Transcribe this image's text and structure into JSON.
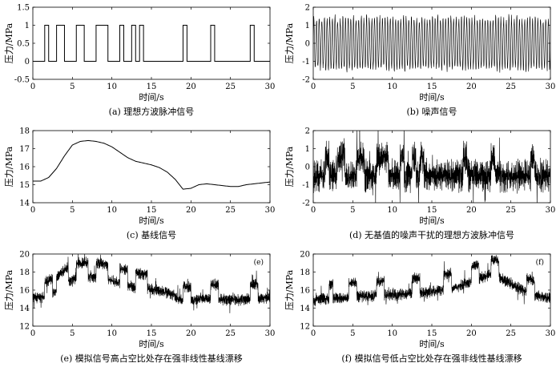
{
  "chart_data": [
    {
      "id": "a",
      "type": "line",
      "caption": "(a) 理想方波脉冲信号",
      "xlabel": "时间/s",
      "ylabel": "压力/MPa",
      "xlim": [
        0,
        30
      ],
      "ylim": [
        -0.5,
        1.5
      ],
      "xticks": [
        "0",
        "5",
        "10",
        "15",
        "20",
        "25",
        "30"
      ],
      "yticks": [
        "1.5",
        "1",
        "0.5",
        "0",
        "-0.5"
      ],
      "ytick_values": [
        1.5,
        1,
        0.5,
        0,
        -0.5
      ],
      "grid": false,
      "series": [
        {
          "kind": "square_pulse",
          "low": 0,
          "high": 1,
          "intervals": [
            [
              1.5,
              2.0
            ],
            [
              3.0,
              4.0
            ],
            [
              5.5,
              6.5
            ],
            [
              8.0,
              9.5
            ],
            [
              11.0,
              11.5
            ],
            [
              12.5,
              13.0
            ],
            [
              13.5,
              14.0
            ],
            [
              19.0,
              19.5
            ],
            [
              22.5,
              23.0
            ],
            [
              27.5,
              28.0
            ]
          ]
        }
      ]
    },
    {
      "id": "b",
      "type": "line",
      "caption": "(b) 噪声信号",
      "xlabel": "时间/s",
      "ylabel": "压力/MPa",
      "xlim": [
        0,
        30
      ],
      "ylim": [
        -2,
        2
      ],
      "xticks": [
        "0",
        "5",
        "10",
        "15",
        "20",
        "25",
        "30"
      ],
      "yticks": [
        "2",
        "1",
        "0",
        "-1",
        "-2"
      ],
      "ytick_values": [
        2,
        1,
        0,
        -1,
        -2
      ],
      "grid": false,
      "series": [
        {
          "kind": "oscillating_noise",
          "amplitude_range": [
            -1.6,
            1.6
          ],
          "periods": 90
        }
      ]
    },
    {
      "id": "c",
      "type": "line",
      "caption": "(c) 基线信号",
      "xlabel": "时间/s",
      "ylabel": "压力/MPa",
      "xlim": [
        0,
        30
      ],
      "ylim": [
        14,
        18
      ],
      "xticks": [
        "0",
        "5",
        "10",
        "15",
        "20",
        "25",
        "30"
      ],
      "yticks": [
        "18",
        "17",
        "16",
        "15",
        "14"
      ],
      "ytick_values": [
        18,
        17,
        16,
        15,
        14
      ],
      "grid": false,
      "series": [
        {
          "kind": "smooth_line",
          "x": [
            0,
            1,
            2,
            3,
            4,
            5,
            6,
            7,
            8,
            9,
            10,
            11,
            12,
            13,
            14,
            15,
            16,
            17,
            18,
            19,
            20,
            21,
            22,
            23,
            24,
            25,
            26,
            27,
            28,
            29,
            30
          ],
          "y": [
            15.2,
            15.2,
            15.4,
            15.9,
            16.6,
            17.2,
            17.4,
            17.45,
            17.4,
            17.3,
            17.1,
            16.8,
            16.5,
            16.3,
            16.2,
            16.1,
            15.95,
            15.7,
            15.3,
            14.75,
            14.8,
            15.0,
            15.05,
            15.0,
            14.95,
            14.9,
            14.9,
            15.0,
            15.05,
            15.1,
            15.15
          ]
        }
      ]
    },
    {
      "id": "d",
      "type": "line",
      "caption": "(d) 无基值的噪声干扰的理想方波脉冲信号",
      "xlabel": "时间/s",
      "ylabel": "压力/MPa",
      "xlim": [
        0,
        30
      ],
      "ylim": [
        -2,
        2
      ],
      "xticks": [
        "0",
        "5",
        "10",
        "15",
        "20",
        "25",
        "30"
      ],
      "yticks": [
        "2",
        "1",
        "0",
        "-1",
        "-2"
      ],
      "ytick_values": [
        2,
        1,
        0,
        -1,
        -2
      ],
      "grid": false,
      "series": [
        {
          "kind": "noisy_pulse",
          "base": "none",
          "pulse_of": "a",
          "noise_amplitude": 1.0
        }
      ]
    },
    {
      "id": "e",
      "type": "line",
      "caption": "(e) 模拟信号高占空比处存在强非线性基线漂移",
      "tag": "(e)",
      "xlabel": "时间/s",
      "ylabel": "压力/MPa",
      "xlim": [
        0,
        30
      ],
      "ylim": [
        12,
        20
      ],
      "xticks": [
        "0",
        "5",
        "10",
        "15",
        "20",
        "25",
        "30"
      ],
      "yticks": [
        "20",
        "18",
        "16",
        "14",
        "12"
      ],
      "ytick_values": [
        20,
        18,
        16,
        14,
        12
      ],
      "grid": false,
      "series": [
        {
          "kind": "noisy_pulse",
          "base": "c",
          "pulse_of": "e",
          "noise_amplitude": 0.7,
          "pulse_intervals": [
            [
              1.5,
              2.5
            ],
            [
              3.0,
              4.5
            ],
            [
              5.5,
              7.0
            ],
            [
              8.0,
              9.5
            ],
            [
              11.0,
              12.0
            ],
            [
              13.0,
              14.5
            ],
            [
              19.0,
              20.0
            ],
            [
              22.5,
              23.5
            ],
            [
              27.5,
              28.5
            ]
          ]
        }
      ]
    },
    {
      "id": "f",
      "type": "line",
      "caption": "(f) 模拟信号低占空比处存在强非线性基线漂移",
      "tag": "(f)",
      "xlabel": "时间/s",
      "ylabel": "压力/MPa",
      "xlim": [
        0,
        30
      ],
      "ylim": [
        12,
        20
      ],
      "xticks": [
        "0",
        "5",
        "10",
        "15",
        "20",
        "25",
        "30"
      ],
      "yticks": [
        "20",
        "18",
        "16",
        "14",
        "12"
      ],
      "ytick_values": [
        20,
        18,
        16,
        14,
        12
      ],
      "grid": false,
      "series": [
        {
          "kind": "noisy_pulse",
          "base": "f_base",
          "pulse_of": "f",
          "noise_amplitude": 0.7,
          "base_x": [
            0,
            3,
            6,
            9,
            12,
            15,
            18,
            20,
            22,
            23,
            24,
            26,
            28,
            30
          ],
          "base_y": [
            15.0,
            15.1,
            15.3,
            15.4,
            15.6,
            15.8,
            16.3,
            17.0,
            17.6,
            17.8,
            17.2,
            16.2,
            15.4,
            15.1
          ],
          "pulse_intervals": [
            [
              2.0,
              2.5
            ],
            [
              4.5,
              5.5
            ],
            [
              8.0,
              9.0
            ],
            [
              12.5,
              13.5
            ],
            [
              16.5,
              17.5
            ],
            [
              20.0,
              21.0
            ],
            [
              22.5,
              23.5
            ],
            [
              27.0,
              28.0
            ]
          ]
        }
      ]
    }
  ]
}
